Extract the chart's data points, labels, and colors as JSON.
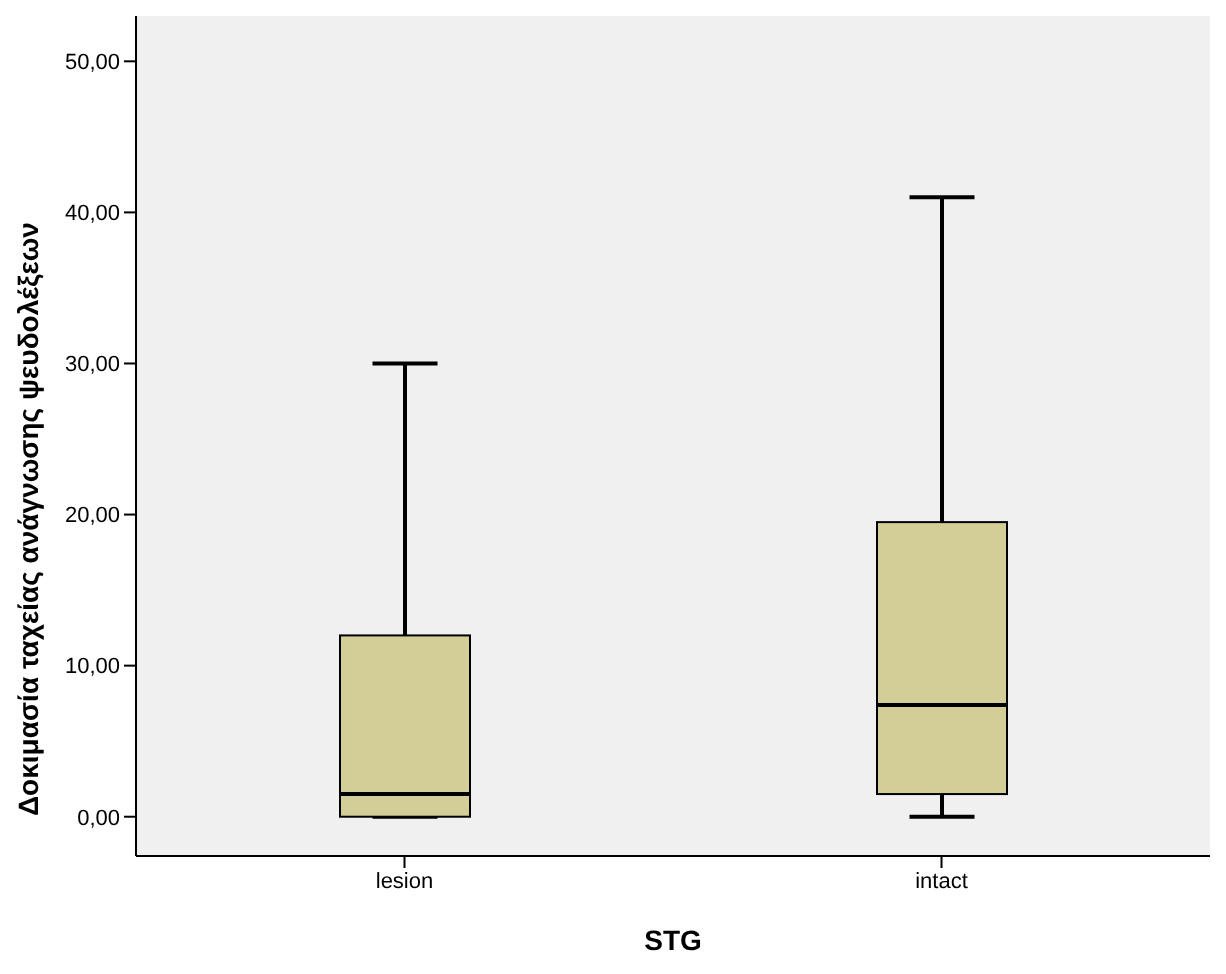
{
  "chart_data": {
    "type": "box",
    "xlabel": "STG",
    "ylabel": "Δοκιμασία ταχείας ανάγνωσης ψευδολέξεων",
    "categories": [
      "lesion",
      "intact"
    ],
    "boxes": [
      {
        "low": 0,
        "q1": 0,
        "median": 1.5,
        "q3": 12,
        "high": 30
      },
      {
        "low": 0,
        "q1": 1.5,
        "median": 7.4,
        "q3": 19.5,
        "high": 41
      }
    ],
    "color": "#d3ce97",
    "ylim": [
      -2.6,
      53
    ],
    "yticks": [
      {
        "value": 0,
        "label": "0,00"
      },
      {
        "value": 10,
        "label": "10,00"
      },
      {
        "value": 20,
        "label": "20,00"
      },
      {
        "value": 30,
        "label": "30,00"
      },
      {
        "value": 40,
        "label": "40,00"
      },
      {
        "value": 50,
        "label": "50,00"
      }
    ]
  }
}
